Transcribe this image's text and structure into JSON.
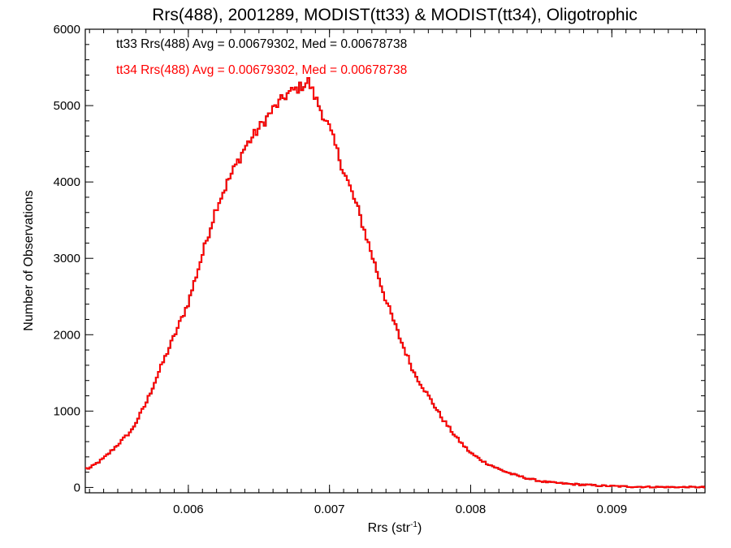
{
  "chart_data": {
    "type": "histogram",
    "title": "Rrs(488), 2001289, MODIST(tt33) & MODIST(tt34), Oligotrophic",
    "xlabel_main": "Rrs (str",
    "xlabel_sup": "-1",
    "xlabel_tail": ")",
    "ylabel": "Number of Observations",
    "xlim": [
      0.00527,
      0.00966
    ],
    "ylim": [
      -70,
      6000
    ],
    "x_ticks": [
      0.006,
      0.007,
      0.008,
      0.009
    ],
    "x_tick_labels": [
      "0.006",
      "0.007",
      "0.008",
      "0.009"
    ],
    "y_ticks": [
      0,
      1000,
      2000,
      3000,
      4000,
      5000,
      6000
    ],
    "y_tick_labels": [
      "0",
      "1000",
      "2000",
      "3000",
      "4000",
      "5000",
      "6000"
    ],
    "legend": [
      {
        "text": "tt33 Rrs(488) Avg = 0.00679302, Med = 0.00678738",
        "color": "#000000"
      },
      {
        "text": "tt34 Rrs(488) Avg = 0.00679302, Med = 0.00678738",
        "color": "#ff0000"
      }
    ],
    "series": [
      {
        "color": "#000000"
      },
      {
        "color": "#ff0000"
      }
    ],
    "x": [
      0.0053,
      0.0054,
      0.0055,
      0.0056,
      0.0057,
      0.0058,
      0.0059,
      0.006,
      0.0061,
      0.0062,
      0.0063,
      0.0064,
      0.0065,
      0.0066,
      0.0067,
      0.0068,
      0.00685,
      0.0069,
      0.007,
      0.0071,
      0.0072,
      0.0073,
      0.0074,
      0.0075,
      0.0076,
      0.0077,
      0.0078,
      0.0079,
      0.008,
      0.0081,
      0.0082,
      0.0083,
      0.0084,
      0.0085,
      0.0086,
      0.0087,
      0.0088,
      0.0089,
      0.009,
      0.0091,
      0.0092,
      0.0093,
      0.0094,
      0.0095,
      0.0096,
      0.00965
    ],
    "y": [
      250,
      380,
      560,
      750,
      1100,
      1550,
      1980,
      2420,
      3050,
      3680,
      4080,
      4450,
      4700,
      4950,
      5150,
      5250,
      5320,
      5100,
      4700,
      4150,
      3650,
      3050,
      2450,
      1950,
      1500,
      1200,
      900,
      650,
      450,
      330,
      240,
      170,
      120,
      80,
      60,
      45,
      35,
      25,
      18,
      12,
      8,
      6,
      4,
      3,
      2,
      2
    ]
  }
}
